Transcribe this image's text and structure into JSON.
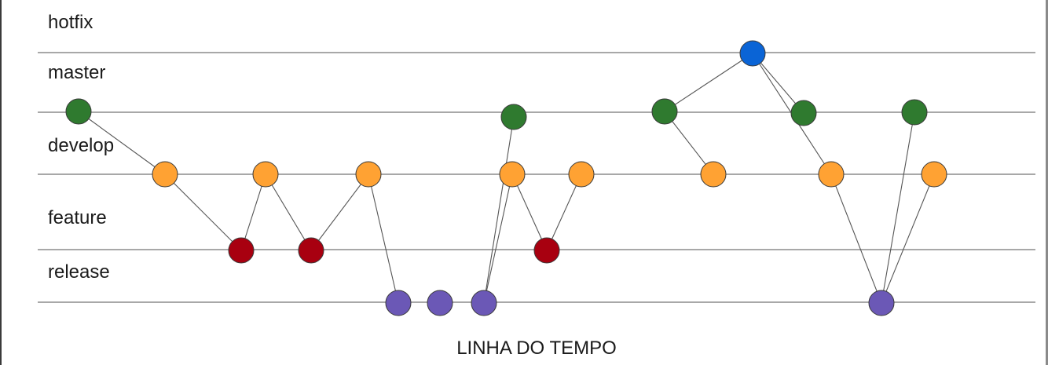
{
  "lanes": {
    "hotfix": "hotfix",
    "master": "master",
    "develop": "develop",
    "feature": "feature",
    "release": "release"
  },
  "timeline_label": "LINHA DO TEMPO",
  "colors": {
    "hotfix_commit": "#0a64d6",
    "master_commit": "#2f7a2f",
    "develop_commit": "#ffa233",
    "feature_commit": "#a80010",
    "release_commit": "#6b58b6",
    "rail": "#8c8c8c"
  }
}
